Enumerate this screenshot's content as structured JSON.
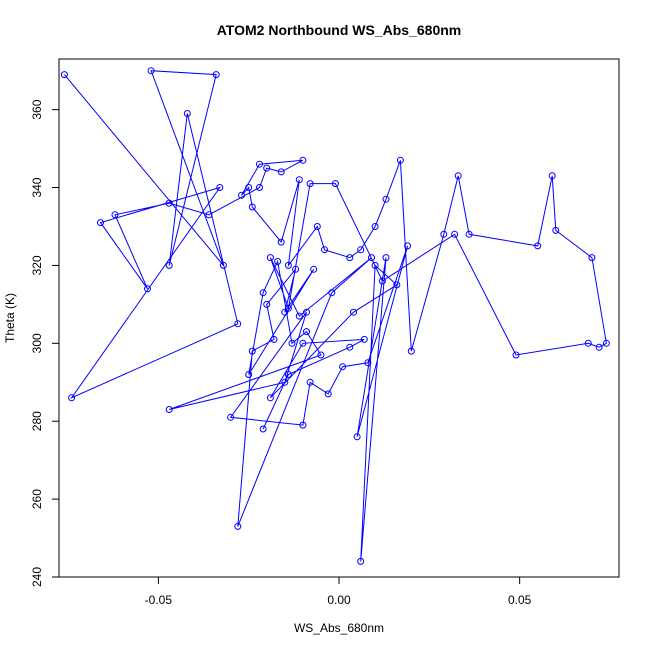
{
  "chart_data": {
    "type": "line",
    "title": "ATOM2 Northbound WS_Abs_680nm",
    "xlabel": "WS_Abs_680nm",
    "ylabel": "Theta (K)",
    "xlim": [
      -0.0775,
      0.0775
    ],
    "ylim": [
      240,
      373
    ],
    "xticks": [
      -0.05,
      0.0,
      0.05
    ],
    "xtick_labels": [
      "-0.05",
      "0.00",
      "0.05"
    ],
    "yticks": [
      240,
      260,
      280,
      300,
      320,
      340,
      360
    ],
    "ytick_labels": [
      "240",
      "260",
      "280",
      "300",
      "320",
      "340",
      "360"
    ],
    "grid": false,
    "series_color": "#0000ff",
    "marker": "open-circle",
    "series": [
      {
        "x": [
          -0.076,
          -0.032,
          -0.052,
          -0.034,
          -0.047,
          -0.042,
          -0.028,
          -0.074,
          -0.033,
          -0.066,
          -0.053,
          -0.062,
          -0.047,
          -0.036,
          -0.022,
          -0.02,
          -0.016,
          -0.01,
          -0.022,
          -0.027,
          -0.025,
          -0.024,
          -0.016,
          -0.011,
          -0.014,
          -0.006,
          -0.004,
          0.003,
          0.006,
          0.01,
          0.013,
          0.017,
          0.02,
          0.029,
          0.033,
          0.036,
          0.055,
          0.059,
          0.06,
          0.07,
          0.074,
          0.072,
          0.069,
          0.049,
          0.032,
          0.012,
          -0.001,
          -0.008,
          -0.014,
          -0.019,
          -0.011,
          0.009,
          -0.002,
          -0.028,
          -0.024,
          -0.018,
          -0.02,
          -0.012,
          -0.015,
          -0.007,
          -0.025,
          -0.021,
          -0.017,
          -0.013,
          -0.009,
          -0.005,
          -0.047,
          -0.015,
          -0.009,
          -0.03,
          -0.01,
          -0.008,
          -0.003,
          0.001,
          0.008,
          0.019,
          0.005,
          0.013,
          0.006,
          0.01,
          0.016,
          0.004,
          -0.019,
          -0.01,
          0.007,
          0.003,
          -0.014,
          -0.021
        ],
        "y": [
          369,
          320,
          370,
          369,
          320,
          359,
          305,
          286,
          340,
          331,
          314,
          333,
          336,
          333,
          340,
          345,
          344,
          347,
          346,
          338,
          340,
          335,
          326,
          342,
          320,
          330,
          324,
          322,
          324,
          330,
          337,
          347,
          298,
          328,
          343,
          328,
          325,
          343,
          329,
          322,
          300,
          299,
          300,
          297,
          328,
          316,
          341,
          341,
          309,
          322,
          307,
          322,
          313,
          253,
          298,
          301,
          310,
          319,
          308,
          319,
          292,
          313,
          321,
          300,
          303,
          297,
          283,
          290,
          308,
          281,
          279,
          290,
          287,
          294,
          295,
          325,
          276,
          322,
          244,
          320,
          315,
          308,
          286,
          300,
          301,
          299,
          292,
          278
        ]
      }
    ]
  }
}
